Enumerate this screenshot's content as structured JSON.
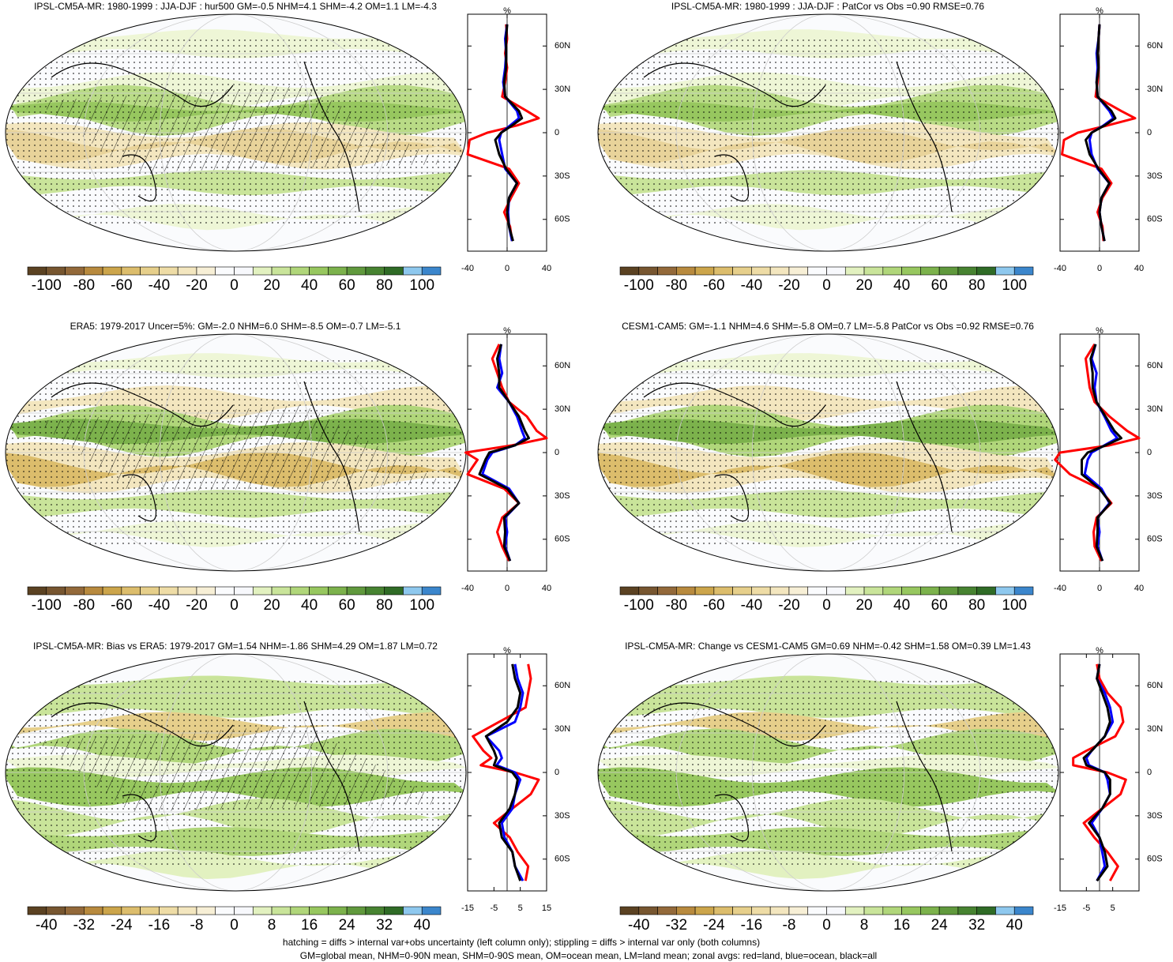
{
  "panels": [
    {
      "title": "IPSL-CM5A-MR: 1980-1999 : JJA-DJF : hur500 GM=-0.5 NHM=4.1 SHM=-4.2 OM=1.1 LM=-4.3",
      "colorbar": {
        "labels": [
          -100,
          -80,
          -60,
          -40,
          -20,
          0,
          20,
          40,
          60,
          80,
          100
        ]
      },
      "profile": {
        "type": "line",
        "x_label": "%",
        "xlim": [
          -40,
          40
        ],
        "xticks": [
          -40,
          0,
          40
        ],
        "ylim": [
          -82,
          82
        ],
        "yticks": [
          {
            "value": 60,
            "label": "60N"
          },
          {
            "value": 30,
            "label": "30N"
          },
          0,
          {
            "value": -30,
            "label": "30S"
          },
          {
            "value": -60,
            "label": "60S"
          }
        ],
        "lat": [
          -75,
          -65,
          -55,
          -45,
          -35,
          -25,
          -15,
          -5,
          0,
          5,
          10,
          15,
          25,
          35,
          45,
          55,
          65,
          75
        ],
        "series": [
          {
            "color": "#ff0000",
            "values": [
              5,
              3,
              -3,
              4,
              12,
              2,
              -40,
              -38,
              -20,
              10,
              32,
              20,
              -5,
              -2,
              0,
              -2,
              0,
              -1
            ]
          },
          {
            "color": "#0000ff",
            "values": [
              5,
              2,
              1,
              2,
              10,
              -2,
              -5,
              -8,
              -6,
              3,
              12,
              10,
              -2,
              -4,
              -2,
              -1,
              -2,
              0
            ]
          },
          {
            "color": "#000000",
            "values": [
              6,
              2,
              0,
              2,
              10,
              -1,
              -8,
              -12,
              -6,
              5,
              15,
              12,
              -2,
              -3,
              -1,
              -1,
              -1,
              0
            ]
          }
        ]
      }
    },
    {
      "title": "IPSL-CM5A-MR: 1980-1999 : JJA-DJF : PatCor vs Obs =0.90 RMSE=0.76",
      "colorbar": {
        "labels": [
          -100,
          -80,
          -60,
          -40,
          -20,
          0,
          20,
          40,
          60,
          80,
          100
        ]
      },
      "profile": {
        "type": "line",
        "x_label": "%",
        "xlim": [
          -40,
          40
        ],
        "xticks": [
          -40,
          0,
          40
        ],
        "ylim": [
          -82,
          82
        ],
        "yticks": [
          {
            "value": 60,
            "label": "60N"
          },
          {
            "value": 30,
            "label": "30N"
          },
          0,
          {
            "value": -30,
            "label": "30S"
          },
          {
            "value": -60,
            "label": "60S"
          }
        ],
        "lat": [
          -75,
          -65,
          -55,
          -45,
          -35,
          -25,
          -15,
          -5,
          0,
          5,
          10,
          15,
          25,
          35,
          45,
          55,
          65,
          75
        ],
        "series": [
          {
            "color": "#ff0000",
            "values": [
              4,
              3,
              -2,
              3,
              12,
              2,
              -38,
              -36,
              -22,
              8,
              36,
              22,
              -4,
              -2,
              -1,
              -2,
              -1,
              0
            ]
          },
          {
            "color": "#0000ff",
            "values": [
              5,
              2,
              0,
              2,
              10,
              -2,
              -8,
              -10,
              -8,
              4,
              14,
              10,
              -2,
              -3,
              -2,
              -3,
              -1,
              0
            ]
          },
          {
            "color": "#000000",
            "values": [
              5,
              2,
              0,
              2,
              10,
              -1,
              -10,
              -14,
              -8,
              5,
              16,
              12,
              -2,
              -3,
              -1,
              -2,
              -1,
              0
            ]
          }
        ]
      }
    },
    {
      "title": "ERA5: 1979-2017 Uncer=5%: GM=-2.0 NHM=6.0 SHM=-8.5 OM=-0.7 LM=-5.1",
      "colorbar": {
        "labels": [
          -100,
          -80,
          -60,
          -40,
          -20,
          0,
          20,
          40,
          60,
          80,
          100
        ]
      },
      "profile": {
        "type": "line",
        "x_label": "%",
        "xlim": [
          -40,
          40
        ],
        "xticks": [
          -40,
          0,
          40
        ],
        "ylim": [
          -82,
          82
        ],
        "yticks": [
          {
            "value": 60,
            "label": "60N"
          },
          {
            "value": 30,
            "label": "30N"
          },
          0,
          {
            "value": -30,
            "label": "30S"
          },
          {
            "value": -60,
            "label": "60S"
          }
        ],
        "lat": [
          -75,
          -65,
          -55,
          -45,
          -35,
          -25,
          -15,
          -5,
          0,
          5,
          10,
          15,
          25,
          35,
          45,
          55,
          65,
          75
        ],
        "series": [
          {
            "color": "#ff0000",
            "values": [
              2,
              -5,
              -10,
              -5,
              12,
              -3,
              -40,
              -30,
              -42,
              5,
              40,
              30,
              20,
              2,
              -5,
              -10,
              -15,
              -8
            ]
          },
          {
            "color": "#0000ff",
            "values": [
              3,
              -2,
              0,
              -2,
              12,
              2,
              -25,
              -20,
              -15,
              8,
              18,
              15,
              10,
              2,
              -10,
              -5,
              -8,
              -6
            ]
          },
          {
            "color": "#000000",
            "values": [
              3,
              -3,
              -2,
              -3,
              12,
              0,
              -28,
              -22,
              -18,
              8,
              22,
              18,
              12,
              2,
              -8,
              -8,
              -10,
              -6
            ]
          }
        ]
      }
    },
    {
      "title": "CESM1-CAM5: GM=-1.1 NHM=4.6 SHM=-5.8 OM=0.7 LM=-5.8 PatCor vs Obs =0.92 RMSE=0.76",
      "colorbar": {
        "labels": [
          -100,
          -80,
          -60,
          -40,
          -20,
          0,
          20,
          40,
          60,
          80,
          100
        ]
      },
      "profile": {
        "type": "line",
        "x_label": "%",
        "xlim": [
          -40,
          40
        ],
        "xticks": [
          -40,
          0,
          40
        ],
        "ylim": [
          -82,
          82
        ],
        "yticks": [
          {
            "value": 60,
            "label": "60N"
          },
          {
            "value": 30,
            "label": "30N"
          },
          0,
          {
            "value": -30,
            "label": "30S"
          },
          {
            "value": -60,
            "label": "60S"
          }
        ],
        "lat": [
          -75,
          -65,
          -55,
          -45,
          -35,
          -25,
          -15,
          -5,
          0,
          5,
          10,
          15,
          25,
          35,
          45,
          55,
          65,
          75
        ],
        "series": [
          {
            "color": "#ff0000",
            "values": [
              2,
              -5,
              -6,
              -3,
              12,
              0,
              -30,
              -45,
              -40,
              10,
              40,
              28,
              10,
              -5,
              -10,
              -12,
              -14,
              -5
            ]
          },
          {
            "color": "#0000ff",
            "values": [
              3,
              -2,
              0,
              -2,
              10,
              2,
              -15,
              -12,
              -8,
              5,
              18,
              12,
              5,
              -3,
              -5,
              -3,
              -8,
              -4
            ]
          },
          {
            "color": "#000000",
            "values": [
              3,
              -3,
              -2,
              -2,
              11,
              0,
              -18,
              -18,
              -12,
              6,
              22,
              15,
              6,
              -3,
              -7,
              -7,
              -9,
              -4
            ]
          }
        ]
      }
    },
    {
      "title": "IPSL-CM5A-MR: Bias vs ERA5: 1979-2017 GM=1.54 NHM=-1.86 SHM=4.29 OM=1.87 LM=0.72",
      "colorbar": {
        "labels": [
          -40,
          -32,
          -24,
          -16,
          -8,
          0,
          8,
          16,
          24,
          32,
          40
        ]
      },
      "profile": {
        "type": "line",
        "x_label": "%",
        "xlim": [
          -15,
          15
        ],
        "xticks": [
          -15,
          -5,
          5,
          15
        ],
        "ylim": [
          -82,
          82
        ],
        "yticks": [
          {
            "value": 60,
            "label": "60N"
          },
          {
            "value": 30,
            "label": "30N"
          },
          0,
          {
            "value": -30,
            "label": "30S"
          },
          {
            "value": -60,
            "label": "60S"
          }
        ],
        "lat": [
          -75,
          -65,
          -55,
          -45,
          -35,
          -25,
          -15,
          -5,
          0,
          5,
          10,
          15,
          25,
          35,
          45,
          55,
          65,
          75
        ],
        "series": [
          {
            "color": "#ff0000",
            "values": [
              7,
              8,
              4,
              1,
              -5,
              2,
              9,
              12,
              3,
              -10,
              -6,
              -9,
              -13,
              -3,
              7,
              8,
              9,
              8
            ]
          },
          {
            "color": "#0000ff",
            "values": [
              6,
              3,
              2,
              -1,
              -2,
              2,
              3,
              5,
              3,
              -4,
              -2,
              -3,
              -8,
              3,
              5,
              6,
              4,
              3
            ]
          },
          {
            "color": "#000000",
            "values": [
              5,
              3,
              2,
              -2,
              -3,
              1,
              3,
              4,
              2,
              -5,
              -4,
              -5,
              -8,
              0,
              4,
              5,
              3,
              2
            ]
          }
        ]
      }
    },
    {
      "title": "IPSL-CM5A-MR: Change vs CESM1-CAM5 GM=0.69 NHM=-0.42 SHM=1.58 OM=0.39 LM=1.43",
      "colorbar": {
        "labels": [
          -40,
          -32,
          -24,
          -16,
          -8,
          0,
          8,
          16,
          24,
          32,
          40
        ]
      },
      "profile": {
        "type": "line",
        "x_label": "%",
        "xlim": [
          -15,
          15
        ],
        "xticks": [
          -15,
          -5,
          5
        ],
        "ylim": [
          -82,
          82
        ],
        "yticks": [
          {
            "value": 60,
            "label": "60N"
          },
          {
            "value": 30,
            "label": "30N"
          },
          0,
          {
            "value": -30,
            "label": "30S"
          },
          {
            "value": -60,
            "label": "60S"
          }
        ],
        "lat": [
          -75,
          -65,
          -55,
          -45,
          -35,
          -25,
          -15,
          -5,
          0,
          5,
          10,
          15,
          25,
          35,
          45,
          55,
          65,
          75
        ],
        "series": [
          {
            "color": "#ff0000",
            "values": [
              4,
              7,
              3,
              -2,
              -6,
              1,
              8,
              10,
              3,
              -10,
              -10,
              -5,
              6,
              9,
              8,
              3,
              0,
              -1
            ]
          },
          {
            "color": "#0000ff",
            "values": [
              -1,
              2,
              1,
              0,
              -3,
              1,
              4,
              3,
              2,
              -4,
              -5,
              -3,
              2,
              5,
              4,
              2,
              -1,
              0
            ]
          },
          {
            "color": "#000000",
            "values": [
              -1,
              3,
              2,
              0,
              -4,
              1,
              4,
              4,
              2,
              -5,
              -6,
              -3,
              2,
              4,
              3,
              1,
              -1,
              0
            ]
          }
        ]
      }
    }
  ],
  "colorbar_colors": [
    "#5b4222",
    "#775630",
    "#93693a",
    "#b88a3e",
    "#cca54b",
    "#dcbd6c",
    "#e6cf8b",
    "#eedca6",
    "#f3e6bf",
    "#f7efd6",
    "#fafbfd",
    "#f7f8fc",
    "#e2f1c0",
    "#c9e49a",
    "#b0d67a",
    "#97c75f",
    "#7cb24c",
    "#60993d",
    "#478331",
    "#2f6b26",
    "#8ec8ee",
    "#3b86cc"
  ],
  "footer": [
    "hatching = diffs > internal var+obs uncertainty (left column only); stippling = diffs > internal var only (both columns)",
    "GM=global mean, NHM=0-90N mean, SHM=0-90S mean, OM=ocean mean, LM=land mean; zonal avgs: red=land, blue=ocean, black=all"
  ]
}
